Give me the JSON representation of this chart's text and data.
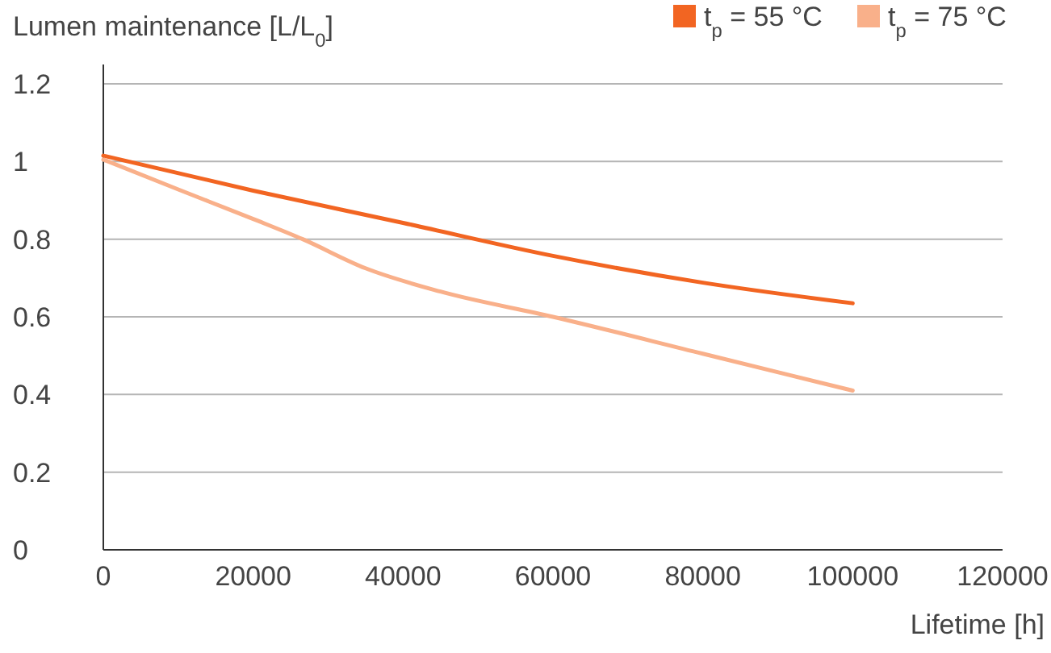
{
  "chart_data": {
    "type": "line",
    "ylabel": "Lumen maintenance [L/L$_{0}$]",
    "xlabel": "Lifetime [h]",
    "series": [
      {
        "name": "t$_{p}$ = 55 °C",
        "color": "#f26522",
        "x": [
          0,
          20000,
          40000,
          60000,
          80000,
          100000
        ],
        "values": [
          1.015,
          0.925,
          0.842,
          0.757,
          0.688,
          0.635
        ]
      },
      {
        "name": "t$_{p}$ = 75 °C",
        "color": "#f9b08a",
        "x": [
          0,
          10000,
          20000,
          26600,
          35000,
          45000,
          60000,
          80000,
          100000
        ],
        "values": [
          1.005,
          0.928,
          0.852,
          0.8,
          0.725,
          0.665,
          0.6,
          0.505,
          0.41
        ]
      }
    ],
    "xlim": [
      0,
      120000
    ],
    "xticks": [
      0,
      20000,
      40000,
      60000,
      80000,
      100000,
      120000
    ],
    "ylim": [
      0,
      1.2
    ],
    "yticks": [
      0,
      0.2,
      0.4,
      0.6,
      0.8,
      1,
      1.2
    ],
    "grid": "y",
    "legend": "top right",
    "marker": "none",
    "line_style": "solid"
  }
}
